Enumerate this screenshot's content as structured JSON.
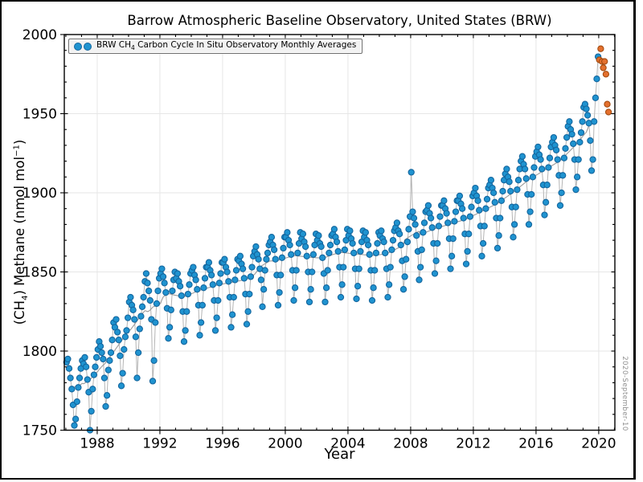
{
  "window": {
    "frame_color": "#000000",
    "background": "#ffffff"
  },
  "header": {
    "title": "Barrow Atmospheric Baseline Observatory, United States (BRW)"
  },
  "axes": {
    "xlabel": "Year",
    "ylabel_parts": {
      "p1": "(CH",
      "sub": "4",
      "p2": ") Methane (nmol mol",
      "sup": "−1",
      "p3": ")"
    }
  },
  "legend": {
    "parts": {
      "p1": "BRW CH",
      "sub": "4",
      "p2": " Carbon Cycle In Situ Observatory Monthly Averages"
    },
    "marker_color": "#1f93d0"
  },
  "datestamp": "2020-September-10",
  "colors": {
    "monthly_fill": "#1f93d0",
    "monthly_edge": "#14669e",
    "preliminary_fill": "#e4702e",
    "preliminary_edge": "#a34b10",
    "connector": "#b4b4b4",
    "trend": "#9a9a9a",
    "grid": "#e6e6e6",
    "axis": "#000000"
  },
  "chart_data": {
    "type": "scatter",
    "title": "Barrow Atmospheric Baseline Observatory, United States (BRW)",
    "xlabel": "Year",
    "ylabel": "(CH4) Methane (nmol mol-1)",
    "xlim": [
      1985.9,
      2021.03
    ],
    "ylim": [
      1750,
      2000
    ],
    "x_ticks": [
      1988,
      1992,
      1996,
      2000,
      2004,
      2008,
      2012,
      2016,
      2020
    ],
    "y_ticks": [
      1750,
      1800,
      1850,
      1900,
      1950,
      2000
    ],
    "x_minor_step": 1,
    "y_minor_step": 10,
    "grid": true,
    "legend_position": "upper left",
    "trend_line": "12-month moving average of monthly series",
    "series": [
      {
        "name": "BRW CH4 monthly averages",
        "color": "#1f93d0",
        "start_year": 1986,
        "start_month": 1,
        "values": [
          1793,
          1795,
          1789,
          1783,
          1776,
          1766,
          1753,
          1757,
          1768,
          1777,
          1783,
          1789,
          1794,
          1792,
          1796,
          1790,
          1782,
          1774,
          1750,
          1762,
          1776,
          1785,
          1790,
          1796,
          1801,
          1806,
          1803,
          1799,
          1795,
          1783,
          1765,
          1772,
          1788,
          1794,
          1799,
          1807,
          1818,
          1815,
          1820,
          1812,
          1807,
          1797,
          1778,
          1786,
          1801,
          1809,
          1813,
          1821,
          1831,
          1834,
          1829,
          1826,
          1820,
          1809,
          1783,
          1799,
          1814,
          1822,
          1828,
          1834,
          1844,
          1849,
          1843,
          1838,
          1832,
          1820,
          1781,
          1794,
          1818,
          1830,
          1838,
          1846,
          1849,
          1852,
          1847,
          1843,
          1837,
          1827,
          1808,
          1815,
          1826,
          1838,
          1845,
          1850,
          1846,
          1849,
          1844,
          1841,
          1835,
          1825,
          1806,
          1813,
          1825,
          1836,
          1842,
          1849,
          1851,
          1853,
          1848,
          1845,
          1839,
          1829,
          1810,
          1818,
          1829,
          1840,
          1846,
          1853,
          1853,
          1856,
          1851,
          1848,
          1842,
          1832,
          1813,
          1821,
          1832,
          1843,
          1849,
          1856,
          1856,
          1858,
          1853,
          1850,
          1844,
          1834,
          1815,
          1823,
          1834,
          1845,
          1851,
          1858,
          1857,
          1860,
          1855,
          1852,
          1846,
          1836,
          1817,
          1825,
          1836,
          1847,
          1853,
          1860,
          1863,
          1866,
          1861,
          1858,
          1852,
          1845,
          1828,
          1839,
          1851,
          1858,
          1862,
          1867,
          1869,
          1872,
          1867,
          1864,
          1858,
          1848,
          1829,
          1837,
          1848,
          1859,
          1865,
          1872,
          1872,
          1875,
          1870,
          1867,
          1861,
          1851,
          1832,
          1840,
          1851,
          1862,
          1868,
          1875,
          1871,
          1874,
          1869,
          1866,
          1860,
          1850,
          1831,
          1839,
          1850,
          1861,
          1867,
          1874,
          1870,
          1873,
          1868,
          1866,
          1859,
          1849,
          1831,
          1840,
          1851,
          1862,
          1867,
          1873,
          1874,
          1877,
          1872,
          1869,
          1863,
          1853,
          1834,
          1842,
          1853,
          1864,
          1870,
          1877,
          1873,
          1876,
          1871,
          1868,
          1862,
          1852,
          1833,
          1841,
          1852,
          1863,
          1869,
          1876,
          1872,
          1875,
          1870,
          1867,
          1861,
          1851,
          1832,
          1840,
          1851,
          1862,
          1868,
          1875,
          1873,
          1876,
          1871,
          1869,
          1862,
          1852,
          1834,
          1842,
          1853,
          1864,
          1870,
          1876,
          1878,
          1881,
          1876,
          1874,
          1867,
          1857,
          1839,
          1847,
          1858,
          1869,
          1877,
          1885,
          1913,
          1888,
          1884,
          1880,
          1873,
          1863,
          1845,
          1853,
          1864,
          1875,
          1881,
          1888,
          1889,
          1892,
          1887,
          1884,
          1878,
          1868,
          1849,
          1857,
          1868,
          1879,
          1885,
          1892,
          1892,
          1895,
          1890,
          1887,
          1881,
          1871,
          1852,
          1860,
          1871,
          1882,
          1888,
          1895,
          1895,
          1898,
          1893,
          1890,
          1884,
          1874,
          1855,
          1863,
          1874,
          1885,
          1891,
          1898,
          1900,
          1903,
          1898,
          1895,
          1889,
          1879,
          1860,
          1868,
          1879,
          1890,
          1896,
          1903,
          1905,
          1908,
          1903,
          1900,
          1894,
          1884,
          1865,
          1873,
          1884,
          1895,
          1901,
          1908,
          1912,
          1915,
          1910,
          1907,
          1901,
          1891,
          1872,
          1880,
          1891,
          1902,
          1908,
          1915,
          1920,
          1923,
          1918,
          1915,
          1909,
          1899,
          1880,
          1888,
          1899,
          1910,
          1916,
          1923,
          1926,
          1929,
          1924,
          1921,
          1915,
          1905,
          1886,
          1894,
          1905,
          1916,
          1922,
          1929,
          1932,
          1935,
          1930,
          1927,
          1921,
          1911,
          1892,
          1900,
          1911,
          1922,
          1928,
          1935,
          1942,
          1945,
          1940,
          1937,
          1931,
          1921,
          1902,
          1910,
          1921,
          1932,
          1938,
          1945,
          1954,
          1956,
          1953,
          1949,
          1944,
          1933,
          1914,
          1921,
          1945,
          1960,
          1972,
          1986
        ]
      },
      {
        "name": "preliminary monthly averages",
        "color": "#e4702e",
        "start_year": 2020,
        "start_month": 1,
        "values": [
          1984,
          1991,
          1983,
          1979,
          1983,
          1975,
          1956,
          1951
        ]
      }
    ]
  }
}
